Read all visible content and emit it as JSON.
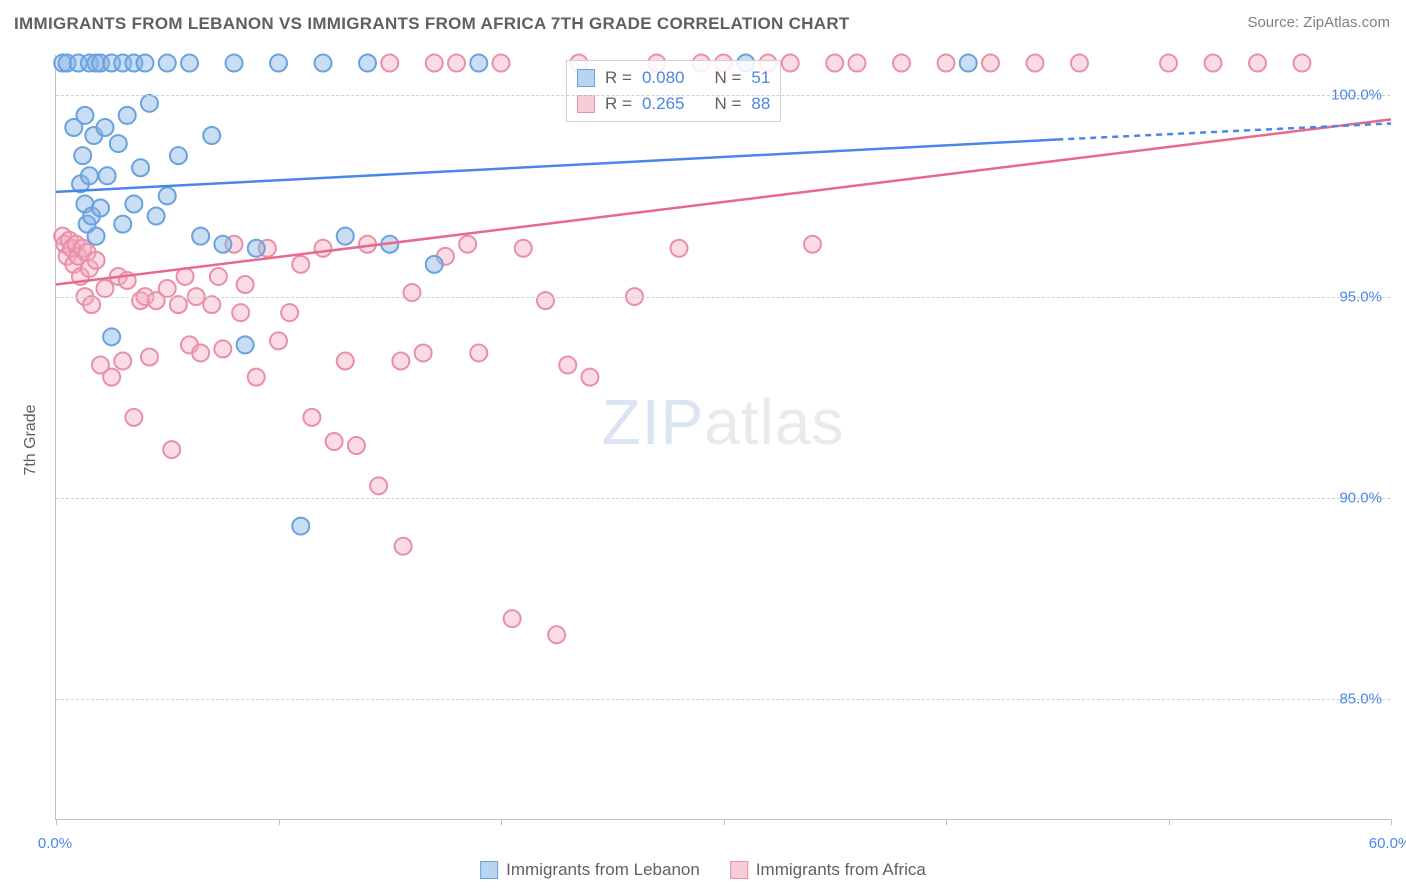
{
  "title": "IMMIGRANTS FROM LEBANON VS IMMIGRANTS FROM AFRICA 7TH GRADE CORRELATION CHART",
  "source": "Source: ZipAtlas.com",
  "y_axis_label": "7th Grade",
  "watermark_zip": "ZIP",
  "watermark_atlas": "atlas",
  "chart": {
    "type": "scatter",
    "background_color": "#ffffff",
    "grid_color": "#d0d0d0",
    "axis_color": "#c0c0c0",
    "tick_label_color": "#4a86e8",
    "xlim": [
      0,
      60
    ],
    "ylim": [
      82,
      101
    ],
    "x_ticks": [
      0,
      10,
      20,
      30,
      40,
      50,
      60
    ],
    "x_tick_labels": [
      "0.0%",
      "",
      "",
      "",
      "",
      "",
      "60.0%"
    ],
    "y_ticks": [
      85,
      90,
      95,
      100
    ],
    "y_tick_labels": [
      "85.0%",
      "90.0%",
      "95.0%",
      "100.0%"
    ],
    "marker_radius": 8.5,
    "marker_stroke_width": 2,
    "trend_line_width": 2.5,
    "label_fontsize": 16,
    "tick_fontsize": 15
  },
  "series": {
    "lebanon": {
      "label": "Immigrants from Lebanon",
      "fill_color": "rgba(135, 180, 230, 0.45)",
      "stroke_color": "#6aa2de",
      "line_color": "#4a86e8",
      "swatch_fill": "#b8d4f0",
      "swatch_border": "#6aa2de",
      "R_label": "R =",
      "R_value": "0.080",
      "N_label": "N =",
      "N_value": "51",
      "trend": {
        "x1": 0,
        "y1": 97.6,
        "x2": 45,
        "y2": 98.9,
        "dash_x2": 60,
        "dash_y2": 99.3
      },
      "points": [
        [
          0.3,
          100.8
        ],
        [
          0.5,
          100.8
        ],
        [
          0.8,
          99.2
        ],
        [
          1.0,
          100.8
        ],
        [
          1.1,
          97.8
        ],
        [
          1.2,
          98.5
        ],
        [
          1.3,
          97.3
        ],
        [
          1.3,
          99.5
        ],
        [
          1.4,
          96.8
        ],
        [
          1.5,
          100.8
        ],
        [
          1.5,
          98.0
        ],
        [
          1.6,
          97.0
        ],
        [
          1.7,
          99.0
        ],
        [
          1.8,
          100.8
        ],
        [
          1.8,
          96.5
        ],
        [
          2.0,
          100.8
        ],
        [
          2.0,
          97.2
        ],
        [
          2.2,
          99.2
        ],
        [
          2.3,
          98.0
        ],
        [
          2.5,
          100.8
        ],
        [
          2.5,
          94.0
        ],
        [
          2.8,
          98.8
        ],
        [
          3.0,
          100.8
        ],
        [
          3.0,
          96.8
        ],
        [
          3.2,
          99.5
        ],
        [
          3.5,
          97.3
        ],
        [
          3.5,
          100.8
        ],
        [
          3.8,
          98.2
        ],
        [
          4.0,
          100.8
        ],
        [
          4.2,
          99.8
        ],
        [
          4.5,
          97.0
        ],
        [
          5.0,
          100.8
        ],
        [
          5.0,
          97.5
        ],
        [
          5.5,
          98.5
        ],
        [
          6.0,
          100.8
        ],
        [
          6.5,
          96.5
        ],
        [
          7.0,
          99.0
        ],
        [
          7.5,
          96.3
        ],
        [
          8.0,
          100.8
        ],
        [
          8.5,
          93.8
        ],
        [
          9.0,
          96.2
        ],
        [
          10.0,
          100.8
        ],
        [
          11.0,
          89.3
        ],
        [
          12.0,
          100.8
        ],
        [
          13.0,
          96.5
        ],
        [
          14.0,
          100.8
        ],
        [
          15.0,
          96.3
        ],
        [
          17.0,
          95.8
        ],
        [
          19.0,
          100.8
        ],
        [
          31.0,
          100.8
        ],
        [
          41.0,
          100.8
        ]
      ]
    },
    "africa": {
      "label": "Immigrants from Africa",
      "fill_color": "rgba(245, 170, 190, 0.42)",
      "stroke_color": "#e890a8",
      "line_color": "#e86a8a",
      "swatch_fill": "#f7cdd8",
      "swatch_border": "#e890a8",
      "R_label": "R =",
      "R_value": "0.265",
      "N_label": "N =",
      "N_value": "88",
      "trend": {
        "x1": 0,
        "y1": 95.3,
        "x2": 60,
        "y2": 99.4
      },
      "points": [
        [
          0.3,
          96.5
        ],
        [
          0.4,
          96.3
        ],
        [
          0.5,
          96.0
        ],
        [
          0.6,
          96.4
        ],
        [
          0.7,
          96.2
        ],
        [
          0.8,
          95.8
        ],
        [
          0.9,
          96.3
        ],
        [
          1.0,
          96.0
        ],
        [
          1.1,
          95.5
        ],
        [
          1.2,
          96.2
        ],
        [
          1.3,
          95.0
        ],
        [
          1.4,
          96.1
        ],
        [
          1.5,
          95.7
        ],
        [
          1.6,
          94.8
        ],
        [
          1.8,
          95.9
        ],
        [
          2.0,
          93.3
        ],
        [
          2.2,
          95.2
        ],
        [
          2.5,
          93.0
        ],
        [
          2.8,
          95.5
        ],
        [
          3.0,
          93.4
        ],
        [
          3.2,
          95.4
        ],
        [
          3.5,
          92.0
        ],
        [
          3.8,
          94.9
        ],
        [
          4.0,
          95.0
        ],
        [
          4.2,
          93.5
        ],
        [
          4.5,
          94.9
        ],
        [
          5.0,
          95.2
        ],
        [
          5.2,
          91.2
        ],
        [
          5.5,
          94.8
        ],
        [
          5.8,
          95.5
        ],
        [
          6.0,
          93.8
        ],
        [
          6.3,
          95.0
        ],
        [
          6.5,
          93.6
        ],
        [
          7.0,
          94.8
        ],
        [
          7.3,
          95.5
        ],
        [
          7.5,
          93.7
        ],
        [
          8.0,
          96.3
        ],
        [
          8.3,
          94.6
        ],
        [
          8.5,
          95.3
        ],
        [
          9.0,
          93.0
        ],
        [
          9.5,
          96.2
        ],
        [
          10.0,
          93.9
        ],
        [
          10.5,
          94.6
        ],
        [
          11.0,
          95.8
        ],
        [
          11.5,
          92.0
        ],
        [
          12.0,
          96.2
        ],
        [
          12.5,
          91.4
        ],
        [
          13.0,
          93.4
        ],
        [
          13.5,
          91.3
        ],
        [
          14.0,
          96.3
        ],
        [
          14.5,
          90.3
        ],
        [
          15.0,
          100.8
        ],
        [
          15.5,
          93.4
        ],
        [
          15.6,
          88.8
        ],
        [
          16.0,
          95.1
        ],
        [
          16.5,
          93.6
        ],
        [
          17.0,
          100.8
        ],
        [
          17.5,
          96.0
        ],
        [
          18.0,
          100.8
        ],
        [
          18.5,
          96.3
        ],
        [
          19.0,
          93.6
        ],
        [
          20.0,
          100.8
        ],
        [
          20.5,
          87.0
        ],
        [
          21.0,
          96.2
        ],
        [
          22.0,
          94.9
        ],
        [
          22.5,
          86.6
        ],
        [
          23.0,
          93.3
        ],
        [
          23.5,
          100.8
        ],
        [
          24.0,
          93.0
        ],
        [
          26.0,
          95.0
        ],
        [
          27.0,
          100.8
        ],
        [
          28.0,
          96.2
        ],
        [
          29.0,
          100.8
        ],
        [
          30.0,
          100.8
        ],
        [
          32.0,
          100.8
        ],
        [
          33.0,
          100.8
        ],
        [
          34.0,
          96.3
        ],
        [
          35.0,
          100.8
        ],
        [
          36.0,
          100.8
        ],
        [
          38.0,
          100.8
        ],
        [
          40.0,
          100.8
        ],
        [
          42.0,
          100.8
        ],
        [
          44.0,
          100.8
        ],
        [
          46.0,
          100.8
        ],
        [
          50.0,
          100.8
        ],
        [
          52.0,
          100.8
        ],
        [
          54.0,
          100.8
        ],
        [
          56.0,
          100.8
        ]
      ]
    }
  }
}
